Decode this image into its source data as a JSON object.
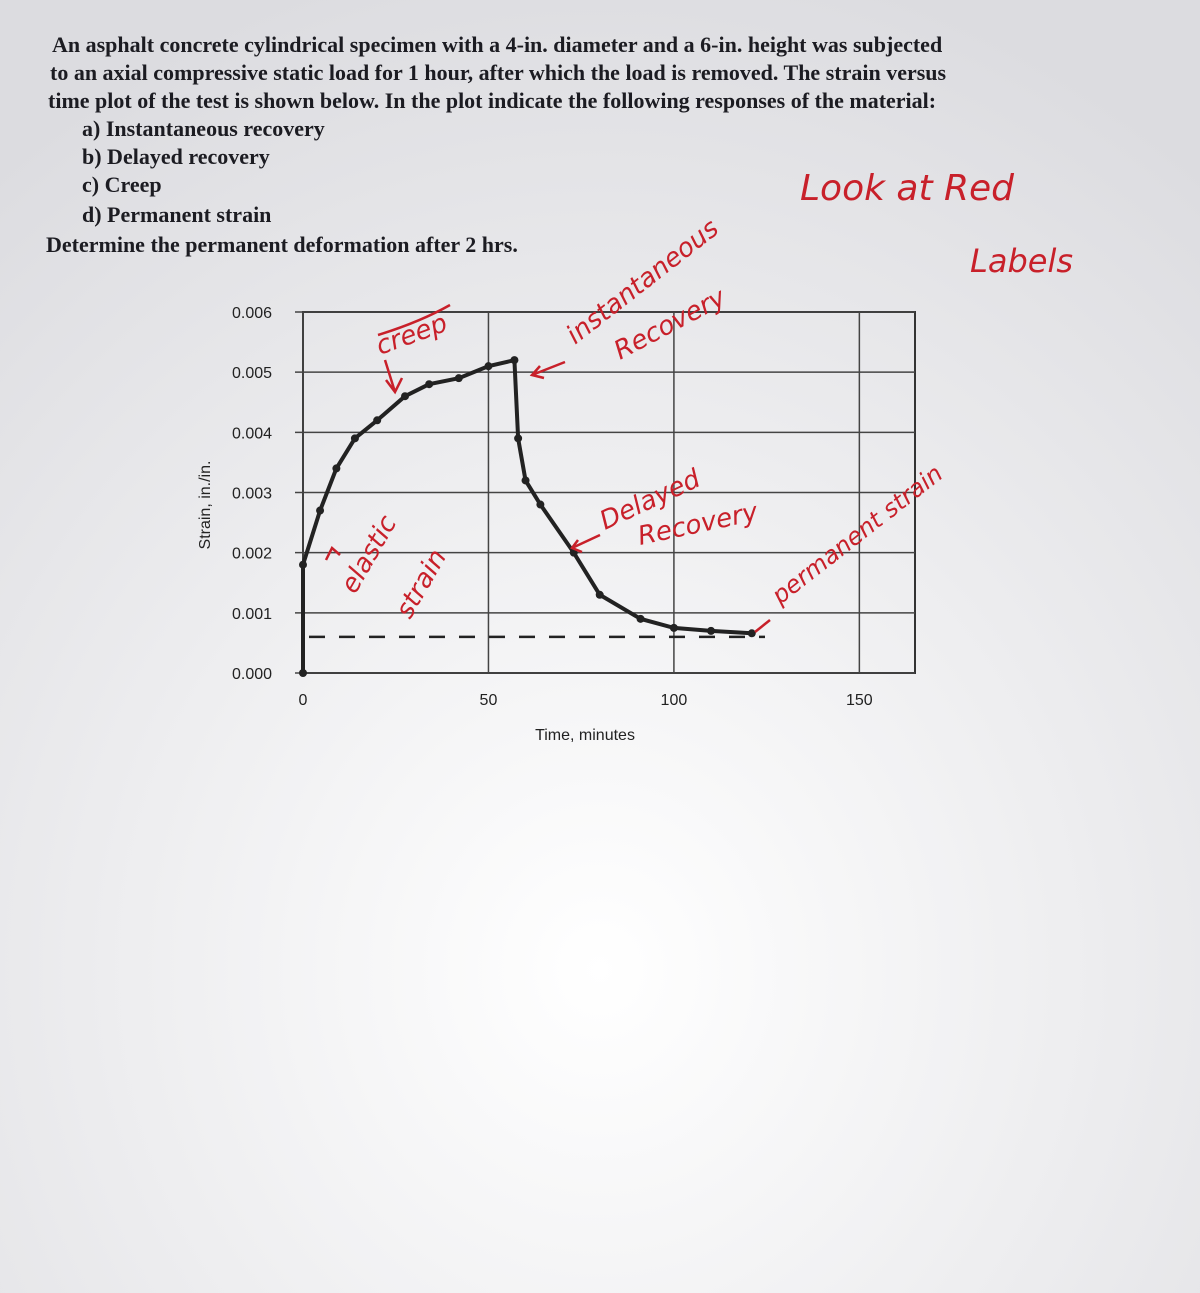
{
  "problem": {
    "intro": [
      "An asphalt concrete cylindrical specimen with a 4-in. diameter and a 6-in. height was subjected",
      "to an axial compressive static load for 1 hour, after which the load is removed.  The strain versus",
      "time plot of the test is shown below.  In the plot indicate the following responses of the material:"
    ],
    "items": [
      "a) Instantaneous recovery",
      "b) Delayed recovery",
      "c) Creep",
      "d) Permanent strain"
    ],
    "question": "Determine the permanent deformation after 2 hrs."
  },
  "annotations": {
    "look": "Look at Red",
    "labels": "Labels",
    "creep": "creep",
    "instantaneous": "instantaneous",
    "recovery": "Recovery",
    "elastic": "elastic",
    "strain": "strain",
    "delayed": "Delayed",
    "delayed_recovery": "Recovery",
    "permanent": "permanent strain"
  },
  "chart_data": {
    "type": "line",
    "xlabel": "Time, minutes",
    "ylabel": "Strain, in./in.",
    "x": [
      0,
      0,
      4.6,
      9,
      14,
      20,
      27.5,
      34,
      42,
      50,
      57,
      58,
      60,
      64,
      73,
      80,
      91,
      100,
      110,
      121
    ],
    "values": [
      0,
      0.0018,
      0.0027,
      0.0034,
      0.0039,
      0.0042,
      0.0046,
      0.0048,
      0.0049,
      0.0051,
      0.0052,
      0.0039,
      0.0032,
      0.0028,
      0.002,
      0.0013,
      0.0009,
      0.00075,
      0.0007,
      0.00066
    ],
    "color": "#222222",
    "reference_line": 0.0006,
    "xlim": [
      0,
      165
    ],
    "xticks": [
      0,
      50,
      100,
      150
    ],
    "ylim": [
      0,
      0.006
    ],
    "yticks": [
      {
        "value": 0,
        "label": "0.000"
      },
      0.001,
      0.002,
      0.003,
      0.004,
      0.005,
      0.006
    ],
    "grid": true
  }
}
